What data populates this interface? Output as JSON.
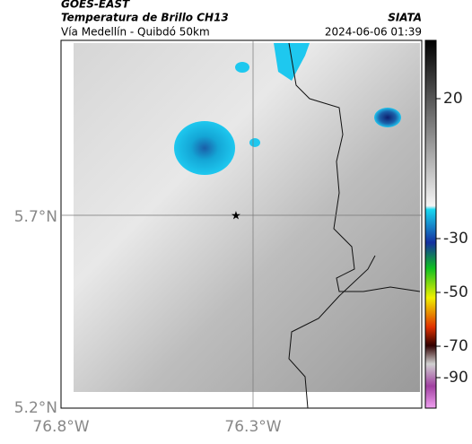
{
  "header": {
    "source": "GOES-EAST",
    "title": "Temperatura de Brillo CH13",
    "region": "Vía Medellín - Quibdó 50km",
    "agency": "SIATA",
    "datetime": "2024-06-06 01:39"
  },
  "map": {
    "lat_labels": [
      "5.7°N",
      "5.2°N"
    ],
    "lon_labels": [
      "76.8°W",
      "76.3°W"
    ]
  },
  "colorbar": {
    "ticks": [
      20,
      -30,
      -50,
      -70,
      -90
    ]
  }
}
